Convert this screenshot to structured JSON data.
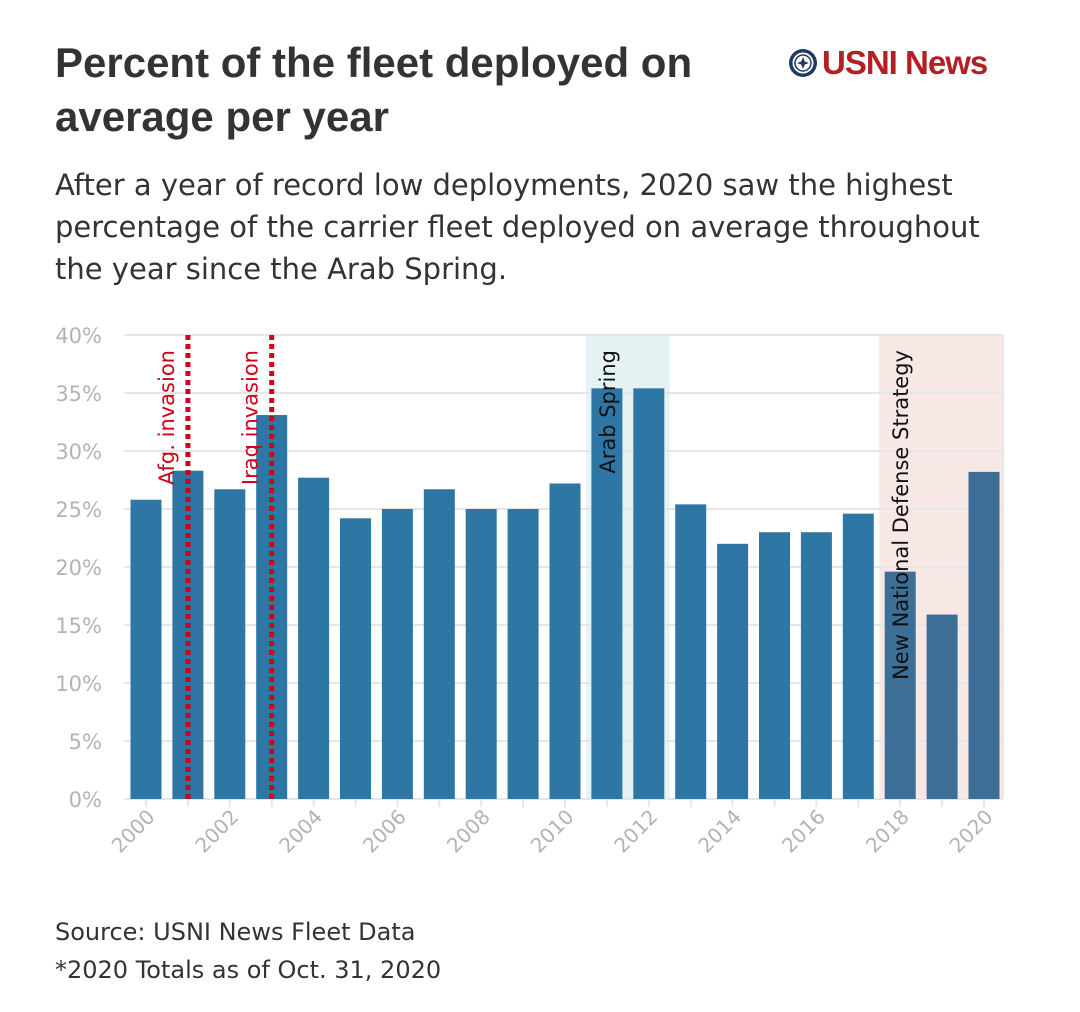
{
  "header": {
    "title": "Percent of the fleet deployed on average per year",
    "subtitle": "After a year of record low deployments, 2020 saw the highest percentage of the carrier fleet deployed on average throughout the year since the Arab Spring.",
    "logo_text": "USNI News"
  },
  "footer": {
    "source": "Source: USNI News Fleet Data",
    "note": "*2020 Totals as of Oct. 31, 2020"
  },
  "chart_data": {
    "type": "bar",
    "title": "Percent of the fleet deployed on average per year",
    "xlabel": "",
    "ylabel": "",
    "ylim": [
      0,
      40
    ],
    "yticks": [
      0,
      5,
      10,
      15,
      20,
      25,
      30,
      35,
      40
    ],
    "ytick_labels": [
      "0%",
      "5%",
      "10%",
      "15%",
      "20%",
      "25%",
      "30%",
      "35%",
      "40%"
    ],
    "xtick_labels": [
      "2000",
      "2002",
      "2004",
      "2006",
      "2008",
      "2010",
      "2012",
      "2014",
      "2016",
      "2018",
      "2020"
    ],
    "grid": true,
    "categories": [
      2000,
      2001,
      2002,
      2003,
      2004,
      2005,
      2006,
      2007,
      2008,
      2009,
      2010,
      2011,
      2012,
      2013,
      2014,
      2015,
      2016,
      2017,
      2018,
      2019,
      2020
    ],
    "values": [
      25.8,
      28.3,
      26.7,
      33.1,
      27.7,
      24.2,
      25.0,
      26.7,
      25.0,
      25.0,
      27.2,
      35.4,
      35.4,
      25.4,
      22.0,
      23.0,
      23.0,
      24.6,
      19.6,
      15.9,
      28.2
    ],
    "colors": {
      "bar": "#2e76a3",
      "bar_shaded": "#3c6e96",
      "event_line": "#d0021b",
      "arab_spring_band": "#e6f3f5",
      "nds_band": "#f7e8e6",
      "grid": "#e6e6e6",
      "tick_text": "#b3b3b3"
    },
    "annotations": [
      {
        "type": "line",
        "x": 2001,
        "label": "Afg. invasion"
      },
      {
        "type": "line",
        "x": 2003,
        "label": "Iraq invasion"
      },
      {
        "type": "band",
        "x_start": 2011,
        "x_end": 2012,
        "label": "Arab Spring"
      },
      {
        "type": "band",
        "x_start": 2018,
        "x_end": 2020,
        "label": "New National Defense Strategy"
      }
    ]
  }
}
